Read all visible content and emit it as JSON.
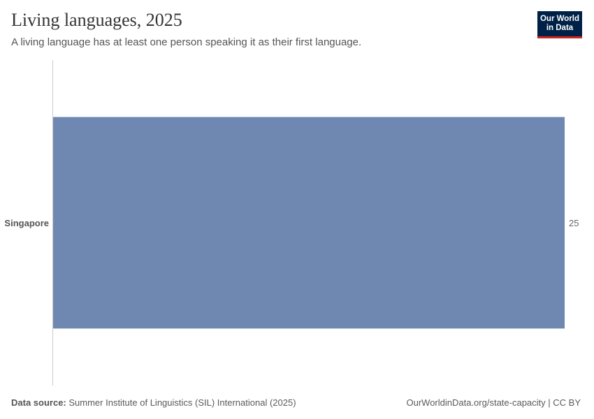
{
  "header": {
    "title": "Living languages, 2025",
    "subtitle": "A living language has at least one person speaking it as their first language.",
    "logo_line1": "Our World",
    "logo_line2": "in Data"
  },
  "footer": {
    "source_label": "Data source:",
    "source": "Summer Institute of Linguistics (SIL) International (2025)",
    "url": "OurWorldinData.org/state-capacity | CC BY"
  },
  "chart_data": {
    "type": "bar",
    "orientation": "horizontal",
    "categories": [
      "Singapore"
    ],
    "values": [
      25
    ],
    "value_labels": [
      "25"
    ],
    "xlim": [
      0,
      25
    ],
    "bar_color": "#6f88b1",
    "grid": false
  }
}
